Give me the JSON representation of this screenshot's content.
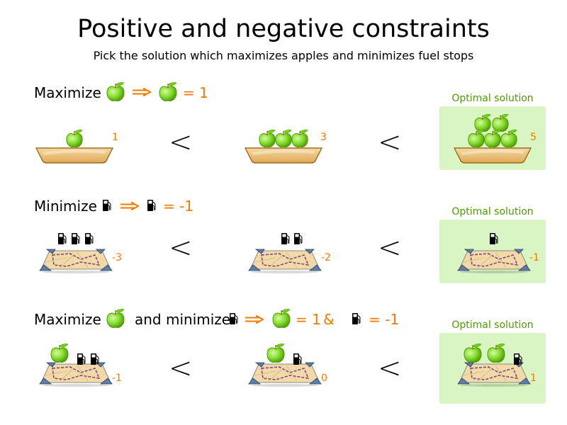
{
  "title": "Positive and negative constraints",
  "subtitle": "Pick the solution which maximizes apples and minimizes fuel stops",
  "colors": {
    "accent": "#f57900",
    "optimal_bg": "#d9f5c3",
    "optimal_text": "#4e9a06"
  },
  "icons": [
    "apple-icon",
    "fuel-pump-icon",
    "bowl-icon",
    "map-icon",
    "implies-arrow-icon"
  ],
  "less_than": "<",
  "optimal_label": "Optimal solution",
  "rows": [
    {
      "verb": "Maximize",
      "equation": "= 1",
      "scores": [
        "1",
        "3",
        "5"
      ]
    },
    {
      "verb": "Minimize",
      "equation": "= -1",
      "scores": [
        "-3",
        "-2",
        "-1"
      ]
    },
    {
      "verb": "Maximize",
      "connector": "and minimize",
      "equation_apple": "= 1",
      "amp": "&",
      "equation_pump": "= -1",
      "scores": [
        "-1",
        "0",
        "1"
      ]
    }
  ]
}
